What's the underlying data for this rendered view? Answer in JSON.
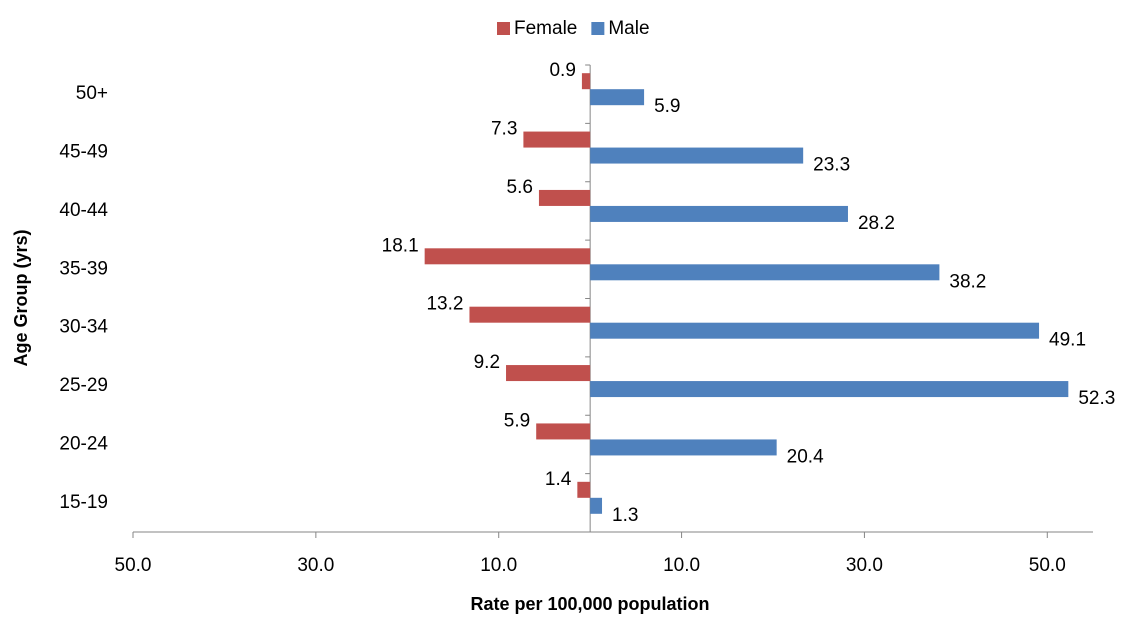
{
  "chart_data": {
    "type": "bar",
    "orientation": "horizontal",
    "x_label": "Rate per 100,000 population",
    "y_label": "Age Group (yrs)",
    "categories": [
      "50+",
      "45-49",
      "40-44",
      "35-39",
      "30-34",
      "25-29",
      "20-24",
      "15-19"
    ],
    "series": [
      {
        "name": "Female",
        "color": "#c0504d",
        "values": [
          -0.9,
          -7.3,
          -5.6,
          -18.1,
          -13.2,
          -9.2,
          -5.9,
          -1.4
        ],
        "value_labels": [
          "0.9",
          "7.3",
          "5.6",
          "18.1",
          "13.2",
          "9.2",
          "5.9",
          "1.4"
        ]
      },
      {
        "name": "Male",
        "color": "#4f81bd",
        "values": [
          5.9,
          23.3,
          28.2,
          38.2,
          49.1,
          52.3,
          20.4,
          1.3
        ],
        "value_labels": [
          "5.9",
          "23.3",
          "28.2",
          "38.2",
          "49.1",
          "52.3",
          "20.4",
          "1.3"
        ]
      }
    ],
    "xlim": [
      -50,
      55
    ],
    "xticks": [
      {
        "value": -50,
        "label": "50.0"
      },
      {
        "value": -30,
        "label": "30.0"
      },
      {
        "value": -10,
        "label": "10.0"
      },
      {
        "value": 10,
        "label": "10.0"
      },
      {
        "value": 30,
        "label": "30.0"
      },
      {
        "value": 50,
        "label": "50.0"
      }
    ],
    "legend": "top"
  }
}
